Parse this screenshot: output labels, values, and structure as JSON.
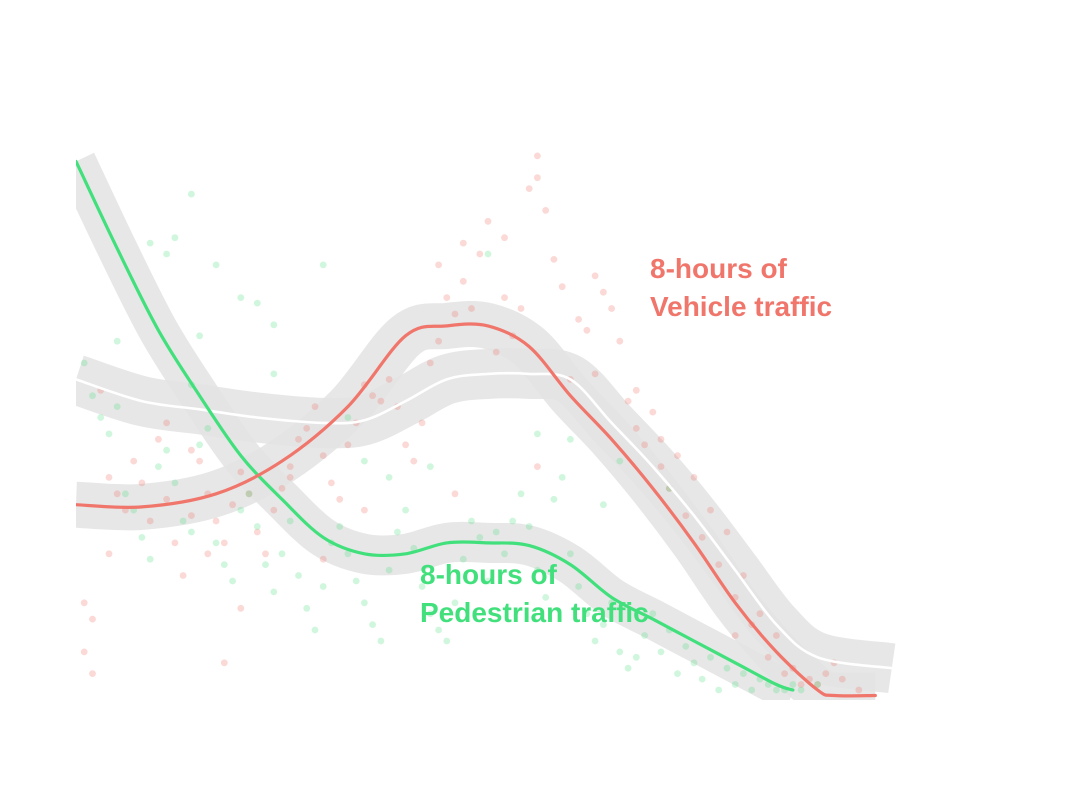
{
  "chart_data": {
    "type": "scatter",
    "title": "",
    "xlabel": "",
    "ylabel": "",
    "xlim": [
      0,
      100
    ],
    "ylim": [
      0,
      100
    ],
    "grid": false,
    "axes_visible": false,
    "band_color": "#e3e3e3",
    "series": [
      {
        "name": "Vehicle",
        "label_lines": [
          "8-hours of",
          "Vehicle traffic"
        ],
        "color": "#f0766c",
        "point_color": "#f0766c",
        "smooth": {
          "x": [
            0,
            8,
            17,
            25,
            33,
            40,
            45,
            50,
            55,
            60,
            65,
            70,
            75,
            80,
            85,
            90,
            92,
            97
          ],
          "y": [
            34,
            33.6,
            36,
            42,
            52,
            65,
            66.8,
            66.8,
            63,
            54,
            46,
            37,
            27,
            16,
            7,
            0,
            -1,
            -1
          ]
        },
        "points": [
          [
            1,
            16
          ],
          [
            2,
            13
          ],
          [
            3,
            55
          ],
          [
            4,
            39
          ],
          [
            4,
            25
          ],
          [
            5,
            36
          ],
          [
            6,
            33
          ],
          [
            7,
            42
          ],
          [
            8,
            38
          ],
          [
            9,
            31
          ],
          [
            10,
            46
          ],
          [
            11,
            49
          ],
          [
            12,
            27
          ],
          [
            13,
            21
          ],
          [
            14,
            44
          ],
          [
            15,
            42
          ],
          [
            16,
            36
          ],
          [
            17,
            31
          ],
          [
            18,
            27
          ],
          [
            19,
            34
          ],
          [
            20,
            40
          ],
          [
            21,
            36
          ],
          [
            22,
            29
          ],
          [
            23,
            25
          ],
          [
            24,
            33
          ],
          [
            25,
            37
          ],
          [
            26,
            41
          ],
          [
            27,
            46
          ],
          [
            28,
            48
          ],
          [
            29,
            52
          ],
          [
            30,
            43
          ],
          [
            31,
            38
          ],
          [
            32,
            35
          ],
          [
            33,
            45
          ],
          [
            34,
            49
          ],
          [
            35,
            56
          ],
          [
            36,
            54
          ],
          [
            37,
            53
          ],
          [
            38,
            57
          ],
          [
            39,
            52
          ],
          [
            40,
            45
          ],
          [
            41,
            42
          ],
          [
            42,
            49
          ],
          [
            43,
            60
          ],
          [
            44,
            64
          ],
          [
            45,
            72
          ],
          [
            46,
            69
          ],
          [
            47,
            75
          ],
          [
            48,
            70
          ],
          [
            49,
            80
          ],
          [
            50,
            86
          ],
          [
            51,
            62
          ],
          [
            52,
            72
          ],
          [
            53,
            65
          ],
          [
            54,
            70
          ],
          [
            55,
            92
          ],
          [
            56,
            98
          ],
          [
            57,
            88
          ],
          [
            58,
            79
          ],
          [
            59,
            74
          ],
          [
            60,
            57
          ],
          [
            61,
            68
          ],
          [
            62,
            66
          ],
          [
            63,
            76
          ],
          [
            64,
            73
          ],
          [
            65,
            70
          ],
          [
            66,
            64
          ],
          [
            67,
            53
          ],
          [
            68,
            48
          ],
          [
            69,
            45
          ],
          [
            70,
            51
          ],
          [
            71,
            41
          ],
          [
            72,
            37
          ],
          [
            73,
            43
          ],
          [
            74,
            32
          ],
          [
            75,
            39
          ],
          [
            76,
            28
          ],
          [
            77,
            33
          ],
          [
            78,
            23
          ],
          [
            79,
            29
          ],
          [
            80,
            17
          ],
          [
            81,
            21
          ],
          [
            82,
            12
          ],
          [
            83,
            14
          ],
          [
            84,
            6
          ],
          [
            85,
            10
          ],
          [
            86,
            3
          ],
          [
            87,
            4
          ],
          [
            88,
            1
          ],
          [
            89,
            2
          ],
          [
            90,
            1
          ],
          [
            91,
            3
          ],
          [
            92,
            5
          ],
          [
            93,
            2
          ],
          [
            44,
            78
          ],
          [
            47,
            82
          ],
          [
            52,
            83
          ],
          [
            56,
            94
          ],
          [
            63,
            58
          ],
          [
            68,
            55
          ],
          [
            71,
            46
          ],
          [
            80,
            10
          ],
          [
            11,
            35
          ],
          [
            14,
            32
          ],
          [
            16,
            25
          ],
          [
            26,
            39
          ],
          [
            35,
            33
          ],
          [
            46,
            36
          ],
          [
            56,
            41
          ],
          [
            30,
            24
          ],
          [
            20,
            15
          ],
          [
            18,
            5
          ],
          [
            1,
            7
          ],
          [
            2,
            3
          ],
          [
            95,
            0
          ]
        ]
      },
      {
        "name": "Pedestrian",
        "label_lines": [
          "8-hours of",
          "Pedestrian traffic"
        ],
        "color": "#42e07c",
        "point_color": "#42e07c",
        "smooth": {
          "x": [
            0,
            5,
            10,
            15,
            20,
            25,
            30,
            35,
            40,
            45,
            50,
            55,
            60,
            65,
            70,
            75,
            80,
            85,
            87
          ],
          "y": [
            97,
            81,
            66,
            54,
            43,
            35,
            28,
            25,
            25,
            27,
            27,
            26.5,
            23,
            17,
            13,
            9,
            5,
            1,
            0
          ]
        },
        "points": [
          [
            1,
            60
          ],
          [
            2,
            54
          ],
          [
            3,
            50
          ],
          [
            4,
            47
          ],
          [
            5,
            52
          ],
          [
            6,
            36
          ],
          [
            7,
            33
          ],
          [
            8,
            28
          ],
          [
            9,
            24
          ],
          [
            10,
            41
          ],
          [
            11,
            44
          ],
          [
            12,
            38
          ],
          [
            13,
            31
          ],
          [
            14,
            29
          ],
          [
            15,
            45
          ],
          [
            16,
            48
          ],
          [
            17,
            27
          ],
          [
            18,
            23
          ],
          [
            19,
            20
          ],
          [
            20,
            33
          ],
          [
            21,
            36
          ],
          [
            22,
            30
          ],
          [
            23,
            23
          ],
          [
            24,
            18
          ],
          [
            25,
            25
          ],
          [
            26,
            31
          ],
          [
            27,
            21
          ],
          [
            28,
            15
          ],
          [
            29,
            11
          ],
          [
            30,
            19
          ],
          [
            31,
            27
          ],
          [
            32,
            30
          ],
          [
            33,
            25
          ],
          [
            34,
            20
          ],
          [
            35,
            16
          ],
          [
            36,
            12
          ],
          [
            37,
            9
          ],
          [
            38,
            22
          ],
          [
            39,
            29
          ],
          [
            40,
            33
          ],
          [
            41,
            26
          ],
          [
            42,
            19
          ],
          [
            43,
            14
          ],
          [
            44,
            11
          ],
          [
            45,
            9
          ],
          [
            46,
            16
          ],
          [
            47,
            24
          ],
          [
            48,
            31
          ],
          [
            49,
            28
          ],
          [
            50,
            20
          ],
          [
            51,
            29
          ],
          [
            52,
            25
          ],
          [
            53,
            31
          ],
          [
            54,
            36
          ],
          [
            55,
            30
          ],
          [
            56,
            22
          ],
          [
            57,
            17
          ],
          [
            58,
            35
          ],
          [
            59,
            39
          ],
          [
            60,
            25
          ],
          [
            61,
            19
          ],
          [
            62,
            14
          ],
          [
            63,
            9
          ],
          [
            64,
            12
          ],
          [
            65,
            16
          ],
          [
            66,
            7
          ],
          [
            67,
            4
          ],
          [
            68,
            6
          ],
          [
            69,
            10
          ],
          [
            70,
            14
          ],
          [
            71,
            7
          ],
          [
            72,
            11
          ],
          [
            73,
            3
          ],
          [
            74,
            8
          ],
          [
            75,
            5
          ],
          [
            76,
            2
          ],
          [
            77,
            6
          ],
          [
            78,
            0
          ],
          [
            79,
            4
          ],
          [
            80,
            1
          ],
          [
            81,
            3
          ],
          [
            82,
            0
          ],
          [
            83,
            2
          ],
          [
            84,
            1
          ],
          [
            85,
            0
          ],
          [
            86,
            0
          ],
          [
            87,
            1
          ],
          [
            88,
            0
          ],
          [
            9,
            82
          ],
          [
            12,
            83
          ],
          [
            14,
            91
          ],
          [
            11,
            80
          ],
          [
            17,
            78
          ],
          [
            20,
            72
          ],
          [
            22,
            71
          ],
          [
            24,
            67
          ],
          [
            30,
            78
          ],
          [
            50,
            80
          ],
          [
            15,
            65
          ],
          [
            5,
            64
          ],
          [
            24,
            58
          ],
          [
            14,
            56
          ],
          [
            35,
            42
          ],
          [
            38,
            39
          ],
          [
            66,
            42
          ],
          [
            72,
            37
          ],
          [
            64,
            34
          ],
          [
            56,
            47
          ],
          [
            43,
            41
          ],
          [
            60,
            46
          ],
          [
            33,
            50
          ],
          [
            90,
            1
          ]
        ]
      }
    ],
    "extra_smooth": {
      "name": "",
      "color": "#ffffff",
      "x": [
        0,
        8,
        15,
        22,
        30,
        35,
        40,
        45,
        50,
        55,
        60,
        65,
        70,
        75,
        80,
        85,
        90,
        99
      ],
      "y": [
        57,
        53,
        51.5,
        50,
        49,
        49.5,
        53,
        57,
        58,
        58,
        57,
        49,
        41,
        32,
        22,
        12,
        6,
        4
      ]
    }
  }
}
